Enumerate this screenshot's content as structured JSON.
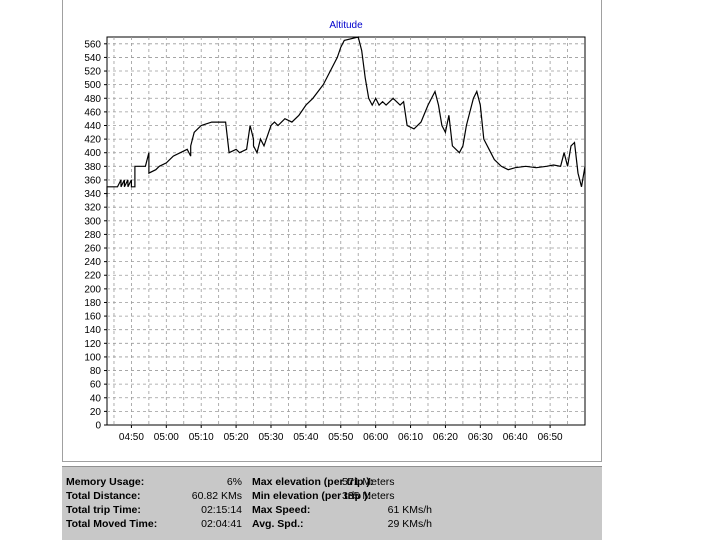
{
  "chart_data": {
    "type": "line",
    "title": "Altitude",
    "xlabel": "",
    "ylabel": "",
    "ylim": [
      0,
      570
    ],
    "yticks": [
      0,
      20,
      40,
      60,
      80,
      100,
      120,
      140,
      160,
      180,
      200,
      220,
      240,
      260,
      280,
      300,
      320,
      340,
      360,
      380,
      400,
      420,
      440,
      460,
      480,
      500,
      520,
      540,
      560
    ],
    "xlim": [
      "04:43",
      "07:00"
    ],
    "xticks": [
      "04:50",
      "05:00",
      "05:10",
      "05:20",
      "05:30",
      "05:40",
      "05:50",
      "06:00",
      "06:10",
      "06:20",
      "06:30",
      "06:40",
      "06:50"
    ],
    "grid": true,
    "series": [
      {
        "color": "#000000",
        "points": [
          [
            "04:43",
            335
          ],
          [
            "04:43",
            350
          ],
          [
            "04:46",
            350
          ],
          [
            "04:47",
            360
          ],
          [
            "04:47",
            350
          ],
          [
            "04:48",
            360
          ],
          [
            "04:48",
            350
          ],
          [
            "04:49",
            360
          ],
          [
            "04:49",
            350
          ],
          [
            "04:50",
            360
          ],
          [
            "04:50",
            350
          ],
          [
            "04:51",
            350
          ],
          [
            "04:51",
            380
          ],
          [
            "04:54",
            380
          ],
          [
            "04:55",
            400
          ],
          [
            "04:55",
            370
          ],
          [
            "04:57",
            375
          ],
          [
            "04:58",
            380
          ],
          [
            "05:00",
            385
          ],
          [
            "05:02",
            395
          ],
          [
            "05:04",
            400
          ],
          [
            "05:06",
            405
          ],
          [
            "05:07",
            395
          ],
          [
            "05:07",
            410
          ],
          [
            "05:08",
            430
          ],
          [
            "05:10",
            440
          ],
          [
            "05:13",
            445
          ],
          [
            "05:17",
            445
          ],
          [
            "05:18",
            400
          ],
          [
            "05:20",
            405
          ],
          [
            "05:21",
            400
          ],
          [
            "05:23",
            405
          ],
          [
            "05:24",
            440
          ],
          [
            "05:25",
            420
          ],
          [
            "05:25",
            410
          ],
          [
            "05:26",
            400
          ],
          [
            "05:27",
            420
          ],
          [
            "05:28",
            410
          ],
          [
            "05:29",
            425
          ],
          [
            "05:30",
            440
          ],
          [
            "05:31",
            445
          ],
          [
            "05:32",
            440
          ],
          [
            "05:34",
            450
          ],
          [
            "05:36",
            445
          ],
          [
            "05:38",
            455
          ],
          [
            "05:40",
            470
          ],
          [
            "05:42",
            480
          ],
          [
            "05:45",
            500
          ],
          [
            "05:47",
            520
          ],
          [
            "05:49",
            540
          ],
          [
            "05:50",
            555
          ],
          [
            "05:51",
            565
          ],
          [
            "05:55",
            570
          ],
          [
            "05:56",
            550
          ],
          [
            "05:57",
            510
          ],
          [
            "05:58",
            480
          ],
          [
            "05:59",
            470
          ],
          [
            "06:00",
            480
          ],
          [
            "06:01",
            470
          ],
          [
            "06:02",
            475
          ],
          [
            "06:03",
            470
          ],
          [
            "06:05",
            480
          ],
          [
            "06:07",
            470
          ],
          [
            "06:08",
            475
          ],
          [
            "06:09",
            440
          ],
          [
            "06:11",
            435
          ],
          [
            "06:13",
            445
          ],
          [
            "06:15",
            470
          ],
          [
            "06:17",
            490
          ],
          [
            "06:18",
            470
          ],
          [
            "06:19",
            440
          ],
          [
            "06:20",
            430
          ],
          [
            "06:21",
            455
          ],
          [
            "06:22",
            410
          ],
          [
            "06:24",
            400
          ],
          [
            "06:25",
            410
          ],
          [
            "06:26",
            440
          ],
          [
            "06:27",
            460
          ],
          [
            "06:28",
            480
          ],
          [
            "06:29",
            490
          ],
          [
            "06:30",
            470
          ],
          [
            "06:31",
            420
          ],
          [
            "06:33",
            400
          ],
          [
            "06:34",
            390
          ],
          [
            "06:36",
            380
          ],
          [
            "06:38",
            375
          ],
          [
            "06:40",
            378
          ],
          [
            "06:43",
            380
          ],
          [
            "06:46",
            378
          ],
          [
            "06:49",
            380
          ],
          [
            "06:51",
            382
          ],
          [
            "06:53",
            380
          ],
          [
            "06:54",
            400
          ],
          [
            "06:55",
            380
          ],
          [
            "06:56",
            410
          ],
          [
            "06:57",
            415
          ],
          [
            "06:58",
            370
          ],
          [
            "06:59",
            350
          ],
          [
            "07:00",
            380
          ]
        ]
      }
    ]
  },
  "stats": {
    "memory_usage": {
      "label": "Memory Usage:",
      "value": "6%"
    },
    "total_distance": {
      "label": "Total Distance:",
      "value": "60.82 KMs"
    },
    "total_trip_time": {
      "label": "Total trip Time:",
      "value": "02:15:14"
    },
    "total_moved_time": {
      "label": "Total Moved Time:",
      "value": "02:04:41"
    },
    "max_elevation": {
      "label": "Max elevation (per trip ):",
      "value": "571 Meters"
    },
    "min_elevation": {
      "label": "Min elevation (per trip ):",
      "value": "335 Meters"
    },
    "max_speed": {
      "label": "Max Speed:",
      "value": "61 KMs/h"
    },
    "avg_speed": {
      "label": "Avg. Spd.:",
      "value": "29 KMs/h"
    }
  }
}
